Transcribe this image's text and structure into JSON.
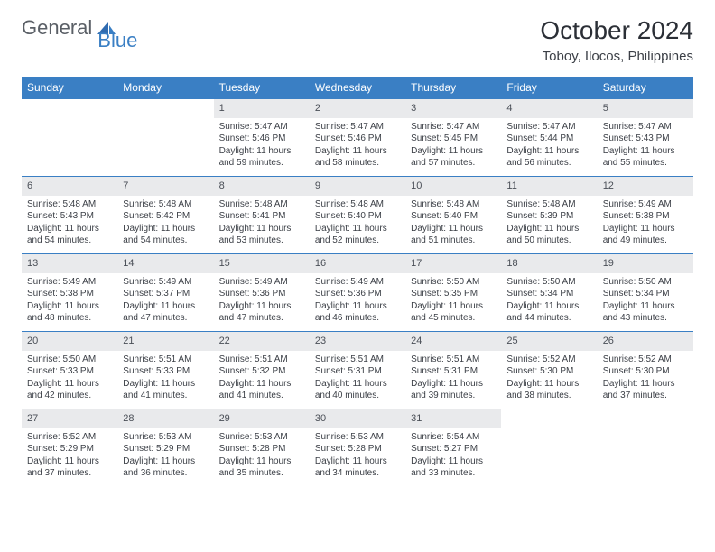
{
  "logo": {
    "part1": "General",
    "part2": "Blue"
  },
  "title": "October 2024",
  "location": "Toboy, Ilocos, Philippines",
  "colors": {
    "header_bg": "#3a7fc4",
    "header_text": "#ffffff",
    "daynum_bg": "#e9eaec",
    "text": "#3b3f46",
    "border": "#3a7fc4"
  },
  "weekdays": [
    "Sunday",
    "Monday",
    "Tuesday",
    "Wednesday",
    "Thursday",
    "Friday",
    "Saturday"
  ],
  "weeks": [
    [
      null,
      null,
      {
        "n": "1",
        "sr": "5:47 AM",
        "ss": "5:46 PM",
        "dl": "11 hours and 59 minutes."
      },
      {
        "n": "2",
        "sr": "5:47 AM",
        "ss": "5:46 PM",
        "dl": "11 hours and 58 minutes."
      },
      {
        "n": "3",
        "sr": "5:47 AM",
        "ss": "5:45 PM",
        "dl": "11 hours and 57 minutes."
      },
      {
        "n": "4",
        "sr": "5:47 AM",
        "ss": "5:44 PM",
        "dl": "11 hours and 56 minutes."
      },
      {
        "n": "5",
        "sr": "5:47 AM",
        "ss": "5:43 PM",
        "dl": "11 hours and 55 minutes."
      }
    ],
    [
      {
        "n": "6",
        "sr": "5:48 AM",
        "ss": "5:43 PM",
        "dl": "11 hours and 54 minutes."
      },
      {
        "n": "7",
        "sr": "5:48 AM",
        "ss": "5:42 PM",
        "dl": "11 hours and 54 minutes."
      },
      {
        "n": "8",
        "sr": "5:48 AM",
        "ss": "5:41 PM",
        "dl": "11 hours and 53 minutes."
      },
      {
        "n": "9",
        "sr": "5:48 AM",
        "ss": "5:40 PM",
        "dl": "11 hours and 52 minutes."
      },
      {
        "n": "10",
        "sr": "5:48 AM",
        "ss": "5:40 PM",
        "dl": "11 hours and 51 minutes."
      },
      {
        "n": "11",
        "sr": "5:48 AM",
        "ss": "5:39 PM",
        "dl": "11 hours and 50 minutes."
      },
      {
        "n": "12",
        "sr": "5:49 AM",
        "ss": "5:38 PM",
        "dl": "11 hours and 49 minutes."
      }
    ],
    [
      {
        "n": "13",
        "sr": "5:49 AM",
        "ss": "5:38 PM",
        "dl": "11 hours and 48 minutes."
      },
      {
        "n": "14",
        "sr": "5:49 AM",
        "ss": "5:37 PM",
        "dl": "11 hours and 47 minutes."
      },
      {
        "n": "15",
        "sr": "5:49 AM",
        "ss": "5:36 PM",
        "dl": "11 hours and 47 minutes."
      },
      {
        "n": "16",
        "sr": "5:49 AM",
        "ss": "5:36 PM",
        "dl": "11 hours and 46 minutes."
      },
      {
        "n": "17",
        "sr": "5:50 AM",
        "ss": "5:35 PM",
        "dl": "11 hours and 45 minutes."
      },
      {
        "n": "18",
        "sr": "5:50 AM",
        "ss": "5:34 PM",
        "dl": "11 hours and 44 minutes."
      },
      {
        "n": "19",
        "sr": "5:50 AM",
        "ss": "5:34 PM",
        "dl": "11 hours and 43 minutes."
      }
    ],
    [
      {
        "n": "20",
        "sr": "5:50 AM",
        "ss": "5:33 PM",
        "dl": "11 hours and 42 minutes."
      },
      {
        "n": "21",
        "sr": "5:51 AM",
        "ss": "5:33 PM",
        "dl": "11 hours and 41 minutes."
      },
      {
        "n": "22",
        "sr": "5:51 AM",
        "ss": "5:32 PM",
        "dl": "11 hours and 41 minutes."
      },
      {
        "n": "23",
        "sr": "5:51 AM",
        "ss": "5:31 PM",
        "dl": "11 hours and 40 minutes."
      },
      {
        "n": "24",
        "sr": "5:51 AM",
        "ss": "5:31 PM",
        "dl": "11 hours and 39 minutes."
      },
      {
        "n": "25",
        "sr": "5:52 AM",
        "ss": "5:30 PM",
        "dl": "11 hours and 38 minutes."
      },
      {
        "n": "26",
        "sr": "5:52 AM",
        "ss": "5:30 PM",
        "dl": "11 hours and 37 minutes."
      }
    ],
    [
      {
        "n": "27",
        "sr": "5:52 AM",
        "ss": "5:29 PM",
        "dl": "11 hours and 37 minutes."
      },
      {
        "n": "28",
        "sr": "5:53 AM",
        "ss": "5:29 PM",
        "dl": "11 hours and 36 minutes."
      },
      {
        "n": "29",
        "sr": "5:53 AM",
        "ss": "5:28 PM",
        "dl": "11 hours and 35 minutes."
      },
      {
        "n": "30",
        "sr": "5:53 AM",
        "ss": "5:28 PM",
        "dl": "11 hours and 34 minutes."
      },
      {
        "n": "31",
        "sr": "5:54 AM",
        "ss": "5:27 PM",
        "dl": "11 hours and 33 minutes."
      },
      null,
      null
    ]
  ],
  "labels": {
    "sunrise": "Sunrise:",
    "sunset": "Sunset:",
    "daylight": "Daylight:"
  }
}
